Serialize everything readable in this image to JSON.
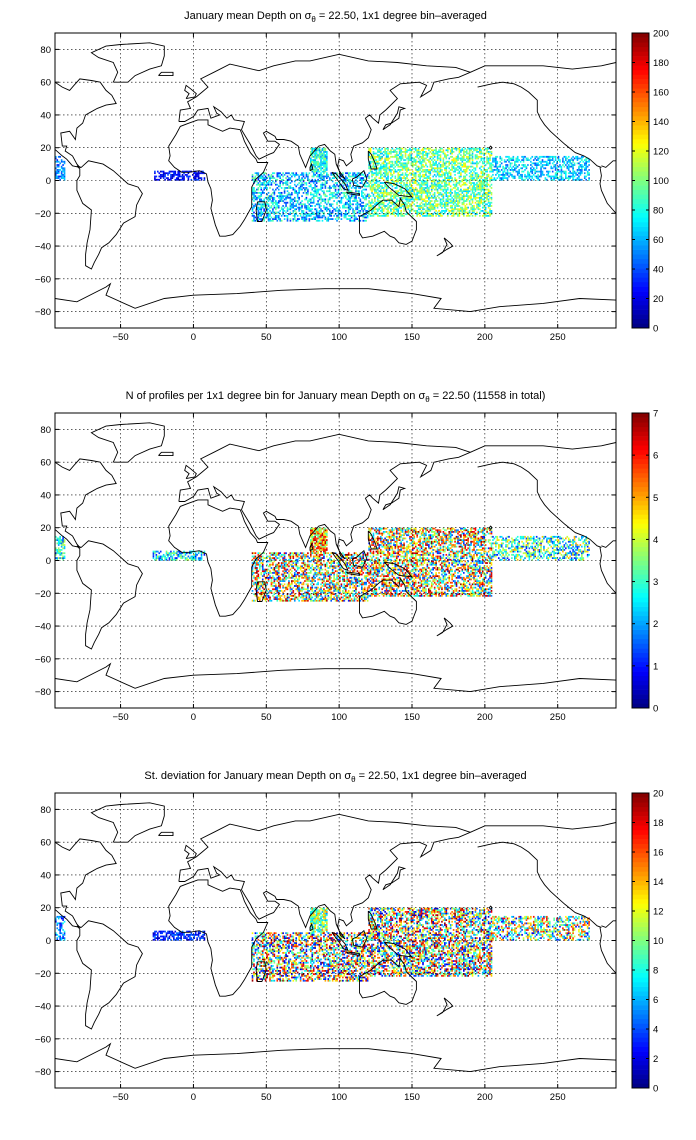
{
  "chart_data": [
    {
      "type": "heatmap",
      "title": "January mean Depth on σθ = 22.50, 1x1 degree bin–averaged",
      "title_parts": {
        "pre": "January mean Depth on σ",
        "sub": "θ",
        "post": " = 22.50, 1x1 degree bin–averaged"
      },
      "xlim": [
        -95,
        290
      ],
      "ylim": [
        -90,
        90
      ],
      "xticks": [
        -50,
        0,
        50,
        100,
        150,
        200,
        250
      ],
      "yticks": [
        -80,
        -60,
        -40,
        -20,
        0,
        20,
        40,
        60,
        80
      ],
      "grid": true,
      "colorbar": {
        "min": 0,
        "max": 200,
        "ticks": [
          0,
          20,
          40,
          60,
          80,
          100,
          120,
          140,
          160,
          180,
          200
        ],
        "colormap": "jet"
      },
      "regions": [
        {
          "name": "Caribbean/Central American coast",
          "x": [
            -95,
            -88
          ],
          "y": [
            0,
            15
          ],
          "value_range": [
            30,
            70
          ],
          "density": 0.55
        },
        {
          "name": "Equatorial Atlantic",
          "x": [
            -28,
            8
          ],
          "y": [
            0,
            6
          ],
          "value_range": [
            10,
            40
          ],
          "density": 0.6
        },
        {
          "name": "Arabian Sea / Bay of Bengal",
          "x": [
            80,
            92
          ],
          "y": [
            5,
            20
          ],
          "value_range": [
            50,
            110
          ],
          "density": 0.85
        },
        {
          "name": "Indian Ocean",
          "x": [
            40,
            120
          ],
          "y": [
            -25,
            5
          ],
          "value_range": [
            30,
            100
          ],
          "density": 0.5
        },
        {
          "name": "Western Pacific",
          "x": [
            120,
            205
          ],
          "y": [
            -22,
            20
          ],
          "value_range": [
            60,
            130
          ],
          "density": 0.6
        },
        {
          "name": "Central/Eastern Pacific",
          "x": [
            205,
            272
          ],
          "y": [
            0,
            15
          ],
          "value_range": [
            40,
            90
          ],
          "density": 0.5
        }
      ]
    },
    {
      "type": "heatmap",
      "title": "N of profiles per 1x1 degree bin for January mean Depth on σθ = 22.50 (11558 in total)",
      "title_parts": {
        "pre": "N of profiles per 1x1 degree bin for January mean Depth on σ",
        "sub": "θ",
        "post": " = 22.50 (11558 in total)"
      },
      "xlim": [
        -95,
        290
      ],
      "ylim": [
        -90,
        90
      ],
      "xticks": [
        -50,
        0,
        50,
        100,
        150,
        200,
        250
      ],
      "yticks": [
        -80,
        -60,
        -40,
        -20,
        0,
        20,
        40,
        60,
        80
      ],
      "grid": true,
      "colorbar": {
        "min": 0,
        "max": 7,
        "ticks": [
          0,
          1,
          2,
          3,
          4,
          5,
          6,
          7
        ],
        "colormap": "jet"
      },
      "regions": [
        {
          "name": "Caribbean/Central American coast",
          "x": [
            -95,
            -88
          ],
          "y": [
            0,
            15
          ],
          "value_range": [
            1,
            4
          ],
          "density": 0.55
        },
        {
          "name": "Equatorial Atlantic",
          "x": [
            -28,
            8
          ],
          "y": [
            0,
            6
          ],
          "value_range": [
            1,
            4
          ],
          "density": 0.6
        },
        {
          "name": "Arabian Sea / Bay of Bengal",
          "x": [
            80,
            92
          ],
          "y": [
            5,
            20
          ],
          "value_range": [
            3,
            7
          ],
          "density": 0.85
        },
        {
          "name": "Indian Ocean",
          "x": [
            40,
            120
          ],
          "y": [
            -25,
            5
          ],
          "value_range": [
            1,
            7
          ],
          "density": 0.55
        },
        {
          "name": "Western Pacific",
          "x": [
            120,
            205
          ],
          "y": [
            -22,
            20
          ],
          "value_range": [
            1,
            7
          ],
          "density": 0.6
        },
        {
          "name": "Central/Eastern Pacific",
          "x": [
            205,
            272
          ],
          "y": [
            0,
            15
          ],
          "value_range": [
            1,
            5
          ],
          "density": 0.5
        }
      ]
    },
    {
      "type": "heatmap",
      "title": "St. deviation for January mean Depth on σθ = 22.50, 1x1 degree bin–averaged",
      "title_parts": {
        "pre": "St. deviation for January mean Depth on σ",
        "sub": "θ",
        "post": " = 22.50, 1x1 degree bin–averaged"
      },
      "xlim": [
        -95,
        290
      ],
      "ylim": [
        -90,
        90
      ],
      "xticks": [
        -50,
        0,
        50,
        100,
        150,
        200,
        250
      ],
      "yticks": [
        -80,
        -60,
        -40,
        -20,
        0,
        20,
        40,
        60,
        80
      ],
      "grid": true,
      "colorbar": {
        "min": 0,
        "max": 20,
        "ticks": [
          0,
          2,
          4,
          6,
          8,
          10,
          12,
          14,
          16,
          18,
          20
        ],
        "colormap": "jet"
      },
      "regions": [
        {
          "name": "Caribbean/Central American coast",
          "x": [
            -95,
            -88
          ],
          "y": [
            0,
            15
          ],
          "value_range": [
            2,
            8
          ],
          "density": 0.55
        },
        {
          "name": "Equatorial Atlantic",
          "x": [
            -28,
            8
          ],
          "y": [
            0,
            6
          ],
          "value_range": [
            1,
            5
          ],
          "density": 0.6
        },
        {
          "name": "Arabian Sea / Bay of Bengal",
          "x": [
            80,
            92
          ],
          "y": [
            5,
            20
          ],
          "value_range": [
            5,
            15
          ],
          "density": 0.85
        },
        {
          "name": "Indian Ocean",
          "x": [
            40,
            120
          ],
          "y": [
            -25,
            5
          ],
          "value_range": [
            1,
            20
          ],
          "density": 0.55
        },
        {
          "name": "Western Pacific",
          "x": [
            120,
            205
          ],
          "y": [
            -22,
            20
          ],
          "value_range": [
            1,
            20
          ],
          "density": 0.6
        },
        {
          "name": "Central/Eastern Pacific",
          "x": [
            205,
            272
          ],
          "y": [
            0,
            15
          ],
          "value_range": [
            2,
            18
          ],
          "density": 0.5
        }
      ]
    }
  ]
}
